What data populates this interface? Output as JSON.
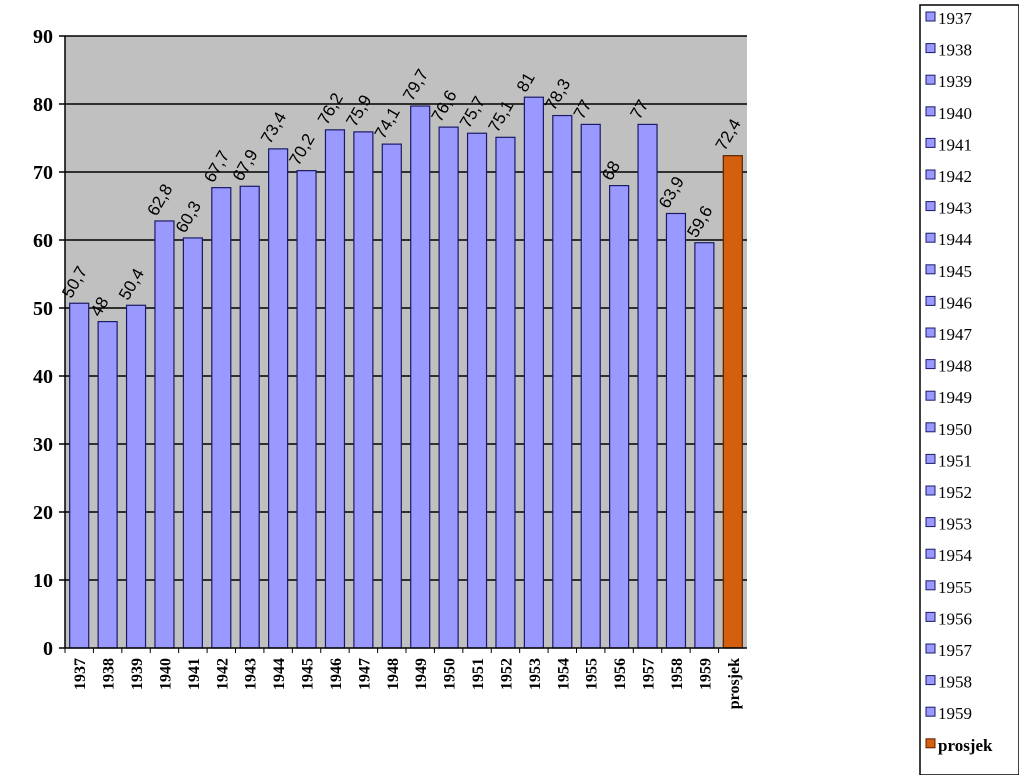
{
  "chart_data": {
    "type": "bar",
    "categories": [
      "1937",
      "1938",
      "1939",
      "1940",
      "1941",
      "1942",
      "1943",
      "1944",
      "1945",
      "1946",
      "1947",
      "1948",
      "1949",
      "1950",
      "1951",
      "1952",
      "1953",
      "1954",
      "1955",
      "1956",
      "1957",
      "1958",
      "1959",
      "prosjek"
    ],
    "values": [
      50.7,
      48,
      50.4,
      62.8,
      60.3,
      67.7,
      67.9,
      73.4,
      70.2,
      76.2,
      75.9,
      74.1,
      79.7,
      76.6,
      75.7,
      75.1,
      81,
      78.3,
      77,
      68,
      77,
      63.9,
      59.6,
      72.4
    ],
    "data_labels": [
      "50,7",
      "48",
      "50,4",
      "62,8",
      "60,3",
      "67,7",
      "67,9",
      "73,4",
      "70,2",
      "76,2",
      "75,9",
      "74,1",
      "79,7",
      "76,6",
      "75,7",
      "75,1",
      "81",
      "78,3",
      "77",
      "68",
      "77",
      "63,9",
      "59,6",
      "72,4"
    ],
    "title": "",
    "xlabel": "",
    "ylabel": "",
    "ylim": [
      0,
      90
    ],
    "yticks": [
      "0",
      "10",
      "20",
      "30",
      "40",
      "50",
      "60",
      "70",
      "80",
      "90"
    ],
    "grid": true,
    "legend_placement": "right",
    "legend": [
      "1937",
      "1938",
      "1939",
      "1940",
      "1941",
      "1942",
      "1943",
      "1944",
      "1945",
      "1946",
      "1947",
      "1948",
      "1949",
      "1950",
      "1951",
      "1952",
      "1953",
      "1954",
      "1955",
      "1956",
      "1957",
      "1958",
      "1959",
      "prosjek"
    ],
    "colors": {
      "year_bar": "#9999ff",
      "year_bar_edge": "#1a1a66",
      "average_bar": "#d45f0f",
      "average_bar_edge": "#5a2000",
      "plot_background": "#c0c0c0",
      "gridline": "#000000"
    }
  }
}
